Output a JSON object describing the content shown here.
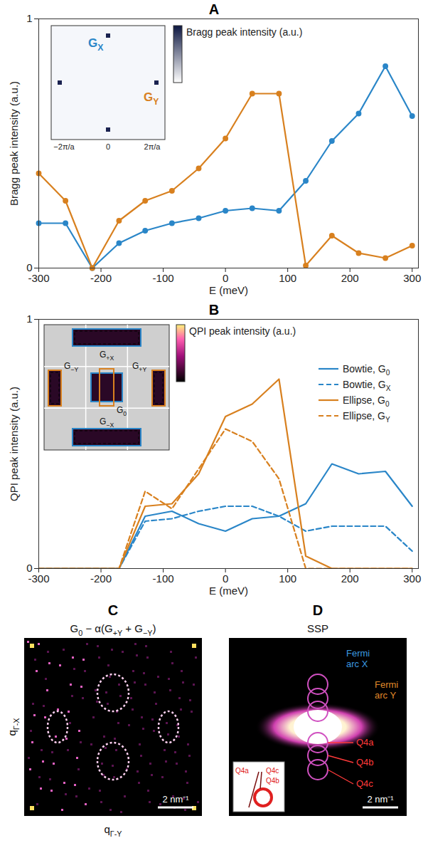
{
  "chart_data": [
    {
      "panel": "A",
      "type": "line",
      "xlabel": "E (meV)",
      "ylabel": "Bragg peak intensity (a.u.)",
      "x": [
        -300,
        -257,
        -214,
        -171,
        -129,
        -86,
        -43,
        0,
        43,
        86,
        129,
        171,
        214,
        257,
        300
      ],
      "series": [
        {
          "name": "GX",
          "color": "#2a86c8",
          "marker": "circle",
          "line_style": "solid",
          "values": [
            0.18,
            0.18,
            0,
            0.1,
            0.15,
            0.18,
            0.2,
            0.23,
            0.24,
            0.23,
            0.35,
            0.51,
            0.62,
            0.81,
            0.61
          ]
        },
        {
          "name": "GY",
          "color": "#d8801f",
          "marker": "circle",
          "line_style": "solid",
          "values": [
            0.38,
            0.27,
            0,
            0.19,
            0.27,
            0.31,
            0.4,
            0.52,
            0.7,
            0.7,
            0.01,
            0.13,
            0.06,
            0.04,
            0.09
          ]
        }
      ],
      "xlim": [
        -300,
        310
      ],
      "xticks": [
        -300,
        -200,
        -100,
        0,
        100,
        200,
        300
      ],
      "ylim": [
        0,
        1
      ],
      "yticks": [
        0,
        1
      ],
      "inset": {
        "labels": [
          "GX",
          "GY"
        ],
        "axis_labels": [
          "−2π/a",
          "0",
          "2π/a"
        ],
        "colorbar_label": "Bragg peak intensity (a.u.)"
      }
    },
    {
      "panel": "B",
      "type": "line",
      "xlabel": "E (meV)",
      "ylabel": "QPI peak intensity (a.u.)",
      "x": [
        -300,
        -257,
        -214,
        -171,
        -129,
        -86,
        -43,
        0,
        43,
        86,
        129,
        171,
        214,
        257,
        300
      ],
      "series": [
        {
          "name": "Bowtie, G0",
          "color": "#2a86c8",
          "line_style": "solid",
          "values": [
            0,
            0,
            0,
            0,
            0.21,
            0.23,
            0.18,
            0.15,
            0.2,
            0.21,
            0.26,
            0.42,
            0.38,
            0.39,
            0.25
          ]
        },
        {
          "name": "Bowtie, GX",
          "color": "#2a86c8",
          "line_style": "dashed",
          "values": [
            0,
            0,
            0,
            0,
            0.19,
            0.2,
            0.23,
            0.25,
            0.25,
            0.21,
            0.15,
            0.17,
            0.17,
            0.17,
            0.07
          ]
        },
        {
          "name": "Ellipse, G0",
          "color": "#d8801f",
          "line_style": "solid",
          "values": [
            0,
            0,
            0,
            0,
            0.25,
            0.26,
            0.38,
            0.61,
            0.66,
            0.76,
            0.05,
            0,
            0,
            0,
            0
          ]
        },
        {
          "name": "Ellipse, GY",
          "color": "#d8801f",
          "line_style": "dashed",
          "values": [
            0,
            0,
            0,
            0,
            0.31,
            0.24,
            0.4,
            0.56,
            0.51,
            0.36,
            0,
            0,
            0,
            0,
            0
          ]
        }
      ],
      "xlim": [
        -300,
        310
      ],
      "xticks": [
        -300,
        -200,
        -100,
        0,
        100,
        200,
        300
      ],
      "ylim": [
        0,
        1
      ],
      "yticks": [
        0,
        1
      ],
      "legend": "top-right",
      "inset": {
        "labels": [
          "G+X",
          "G−Y",
          "G0",
          "G+Y",
          "G−X"
        ],
        "colorbar_label": "QPI peak intensity (a.u.)"
      }
    },
    {
      "panel": "C",
      "type": "image",
      "title": "G0 − α(G+Y + G−Y)",
      "xlabel": "qΓ-Y",
      "ylabel": "qΓ-X",
      "scale_bar": "2 nm⁻¹"
    },
    {
      "panel": "D",
      "type": "image",
      "title": "SSP",
      "scale_bar": "2 nm⁻¹",
      "annotations": [
        {
          "text": "Fermi arc X",
          "color": "#3b9be0"
        },
        {
          "text": "Fermi arc Y",
          "color": "#e08a2a"
        },
        {
          "text": "Q4a",
          "color": "#ff3a3a"
        },
        {
          "text": "Q4b",
          "color": "#ff3a3a"
        },
        {
          "text": "Q4c",
          "color": "#ff3a3a"
        }
      ],
      "inset": {
        "labels": [
          "Q4a",
          "Q4b",
          "Q4c"
        ]
      }
    }
  ]
}
